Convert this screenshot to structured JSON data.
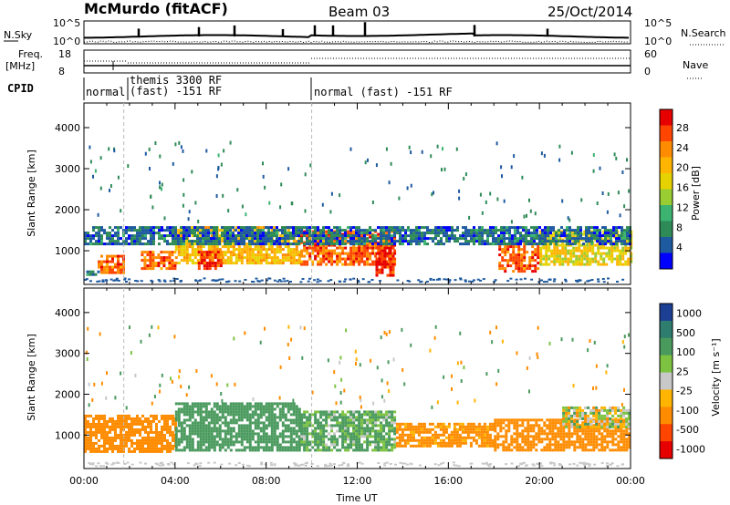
{
  "header": {
    "station": "McMurdo (fitACF)",
    "beam": "Beam 03",
    "date": "25/Oct/2014"
  },
  "status_panels": {
    "nsky_label": "N.Sky",
    "nsky_ticks": [
      "10^5",
      "10^0"
    ],
    "nsearch_label": "N.Search",
    "nsearch_ticks": [
      "10^5",
      "10^0"
    ],
    "freq_label": "Freq.",
    "freq_unit": "[MHz]",
    "freq_ticks": [
      "18",
      "8"
    ],
    "nave_label": "Nave",
    "nave_ticks": [
      "60",
      "0"
    ],
    "cpid_label": "CPID",
    "cpid_segments": [
      {
        "start_h": 0.0,
        "end_h": 1.75,
        "label": "normal"
      },
      {
        "start_h": 1.75,
        "end_h": 10.0,
        "label": "themis 3300 RF (fast) -151 RF"
      },
      {
        "start_h": 10.0,
        "end_h": 24.0,
        "label": "normal (fast) -151 RF"
      }
    ]
  },
  "chart_data": [
    {
      "type": "heatmap",
      "name": "power",
      "ylabel": "Slant Range [km]",
      "xlim_h": [
        0,
        24
      ],
      "ylim_km": [
        180,
        4600
      ],
      "yticks": [
        1000,
        2000,
        3000,
        4000
      ],
      "colorbar_label": "Power [dB]",
      "colorbar_ticks": [
        "28",
        "24",
        "20",
        "16",
        "12",
        "8",
        "4"
      ],
      "colorbar_colors": [
        "#e60000",
        "#ff4500",
        "#ff8c00",
        "#ffb400",
        "#e6d200",
        "#9acd32",
        "#3cb371",
        "#2e8b57",
        "#1e5aa0",
        "#0000ff"
      ],
      "features": [
        {
          "x_h": [
            0.1,
            0.6
          ],
          "y_km": [
            400,
            520
          ],
          "value": 6
        },
        {
          "x_h": [
            0.6,
            1.8
          ],
          "y_km": [
            500,
            900
          ],
          "value": 26
        },
        {
          "x_h": [
            2.5,
            4.0
          ],
          "y_km": [
            600,
            1000
          ],
          "value": 26
        },
        {
          "x_h": [
            4.0,
            9.5
          ],
          "y_km": [
            700,
            1600
          ],
          "value": 20
        },
        {
          "x_h": [
            5.0,
            6.0
          ],
          "y_km": [
            600,
            1000
          ],
          "value": 28
        },
        {
          "x_h": [
            9.5,
            13.7
          ],
          "y_km": [
            700,
            1500
          ],
          "value": 26
        },
        {
          "x_h": [
            12.8,
            13.6
          ],
          "y_km": [
            400,
            1100
          ],
          "value": 28
        },
        {
          "x_h": [
            18.2,
            20.0
          ],
          "y_km": [
            500,
            1200
          ],
          "value": 26
        },
        {
          "x_h": [
            20.0,
            24.0
          ],
          "y_km": [
            700,
            1500
          ],
          "value": 18
        },
        {
          "x_h": [
            0.0,
            24.0
          ],
          "y_km": [
            1200,
            1600
          ],
          "value": 6
        }
      ]
    },
    {
      "type": "heatmap",
      "name": "velocity",
      "ylabel": "Slant Range [km]",
      "xlabel": "Time UT",
      "xlim_h": [
        0,
        24
      ],
      "ylim_km": [
        180,
        4600
      ],
      "yticks": [
        1000,
        2000,
        3000,
        4000
      ],
      "xtick_labels": [
        "00:00",
        "04:00",
        "08:00",
        "12:00",
        "16:00",
        "20:00",
        "00:00"
      ],
      "colorbar_label": "Velocity [m s⁻¹]",
      "colorbar_ticks": [
        "1000",
        "500",
        "100",
        "25",
        "-25",
        "-100",
        "-500",
        "-1000"
      ],
      "colorbar_colors": [
        "#1c3f94",
        "#2e7d6e",
        "#4a9a5e",
        "#7dc341",
        "#c8c8c8",
        "#ffb400",
        "#ff8c00",
        "#ff4500",
        "#e60000"
      ],
      "features": [
        {
          "x_h": [
            0.0,
            4.0
          ],
          "y_km": [
            600,
            1500
          ],
          "value": -300
        },
        {
          "x_h": [
            4.0,
            9.5
          ],
          "y_km": [
            600,
            1800
          ],
          "value": 300
        },
        {
          "x_h": [
            9.5,
            13.7
          ],
          "y_km": [
            600,
            1600
          ],
          "value": 150
        },
        {
          "x_h": [
            13.7,
            18.0
          ],
          "y_km": [
            700,
            1300
          ],
          "value": -200
        },
        {
          "x_h": [
            18.0,
            24.0
          ],
          "y_km": [
            600,
            1400
          ],
          "value": -300
        },
        {
          "x_h": [
            21.0,
            24.0
          ],
          "y_km": [
            1200,
            1700
          ],
          "value": 0
        }
      ]
    }
  ]
}
